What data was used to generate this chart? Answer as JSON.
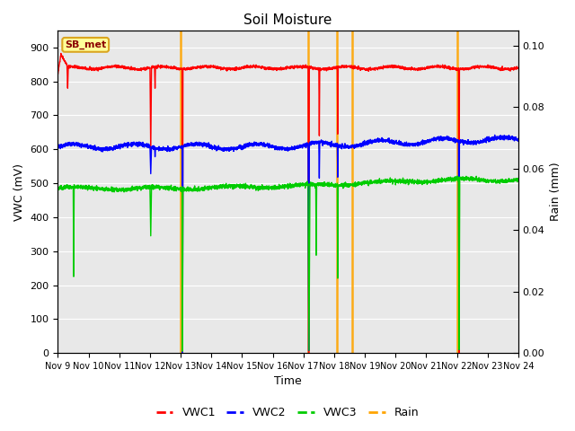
{
  "title": "Soil Moisture",
  "xlabel": "Time",
  "ylabel_left": "VWC (mV)",
  "ylabel_right": "Rain (mm)",
  "xlim": [
    0,
    15
  ],
  "ylim_left": [
    0,
    950
  ],
  "ylim_right": [
    0,
    0.105
  ],
  "yticks_left": [
    0,
    100,
    200,
    300,
    400,
    500,
    600,
    700,
    800,
    900
  ],
  "yticks_right": [
    0.0,
    0.02,
    0.04,
    0.06,
    0.08,
    0.1
  ],
  "xtick_labels": [
    "Nov 9",
    "Nov 10",
    "Nov 11",
    "Nov 12",
    "Nov 13",
    "Nov 14",
    "Nov 15",
    "Nov 16",
    "Nov 17",
    "Nov 18",
    "Nov 19",
    "Nov 20",
    "Nov 21",
    "Nov 22",
    "Nov 23",
    "Nov 24"
  ],
  "station_label": "SB_met",
  "station_label_color": "#8B0000",
  "station_box_color": "#FFFF99",
  "station_box_edge": "#DAA520",
  "colors": {
    "VWC1": "#FF0000",
    "VWC2": "#0000FF",
    "VWC3": "#00CC00",
    "Rain": "#FFA500"
  },
  "bg_color": "#E8E8E8",
  "fig_bg": "#FFFFFF",
  "grid_color": "#FFFFFF",
  "linewidth_vwc": 1.0,
  "rain_spike_positions": [
    4.0,
    8.15,
    9.1,
    9.6,
    13.0
  ],
  "vwc1_baseline": 840,
  "vwc2_baseline": 610,
  "vwc3_baseline": 490
}
